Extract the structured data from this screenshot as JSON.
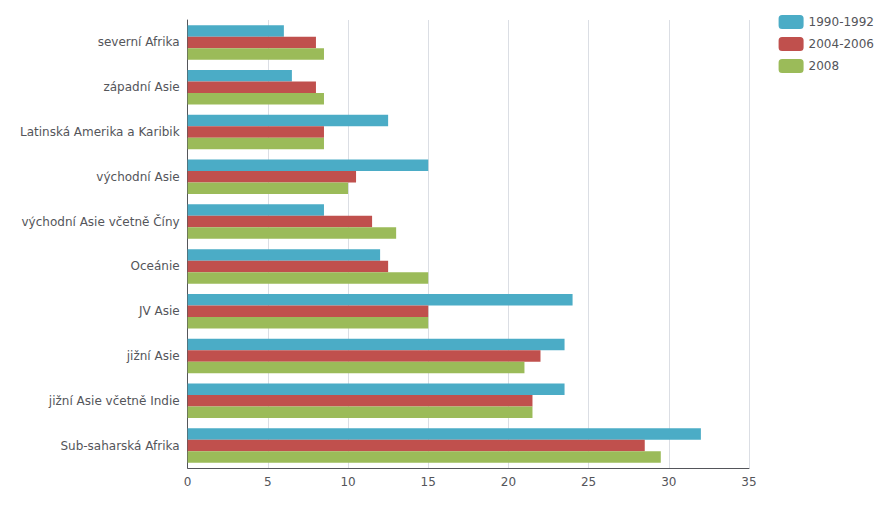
{
  "chart_data": {
    "type": "bar",
    "orientation": "horizontal",
    "categories": [
      "Sub-saharská Afrika",
      "jižní Asie včetně Indie",
      "jižní Asie",
      "JV Asie",
      "Oceánie",
      "východní Asie včetně Číny",
      "východní Asie",
      "Latinská Amerika a Karibik",
      "západní Asie",
      "severní Afrika"
    ],
    "series": [
      {
        "name": "1990-1992",
        "color": "#4BACC6",
        "values": [
          32.0,
          23.5,
          23.5,
          24.0,
          12.0,
          8.5,
          15.0,
          12.5,
          6.5,
          6.0
        ]
      },
      {
        "name": "2004-2006",
        "color": "#C0504D",
        "values": [
          28.5,
          21.5,
          22.0,
          15.0,
          12.5,
          11.5,
          10.5,
          8.5,
          8.0,
          8.0
        ]
      },
      {
        "name": "2008",
        "color": "#9BBB59",
        "values": [
          29.5,
          21.5,
          21.0,
          15.0,
          15.0,
          13.0,
          10.0,
          8.5,
          8.5,
          8.5
        ]
      }
    ],
    "xlim": [
      0,
      35
    ],
    "xticks": [
      0,
      5,
      10,
      15,
      20,
      25,
      30,
      35
    ],
    "grid": true,
    "legend": "upper right"
  }
}
